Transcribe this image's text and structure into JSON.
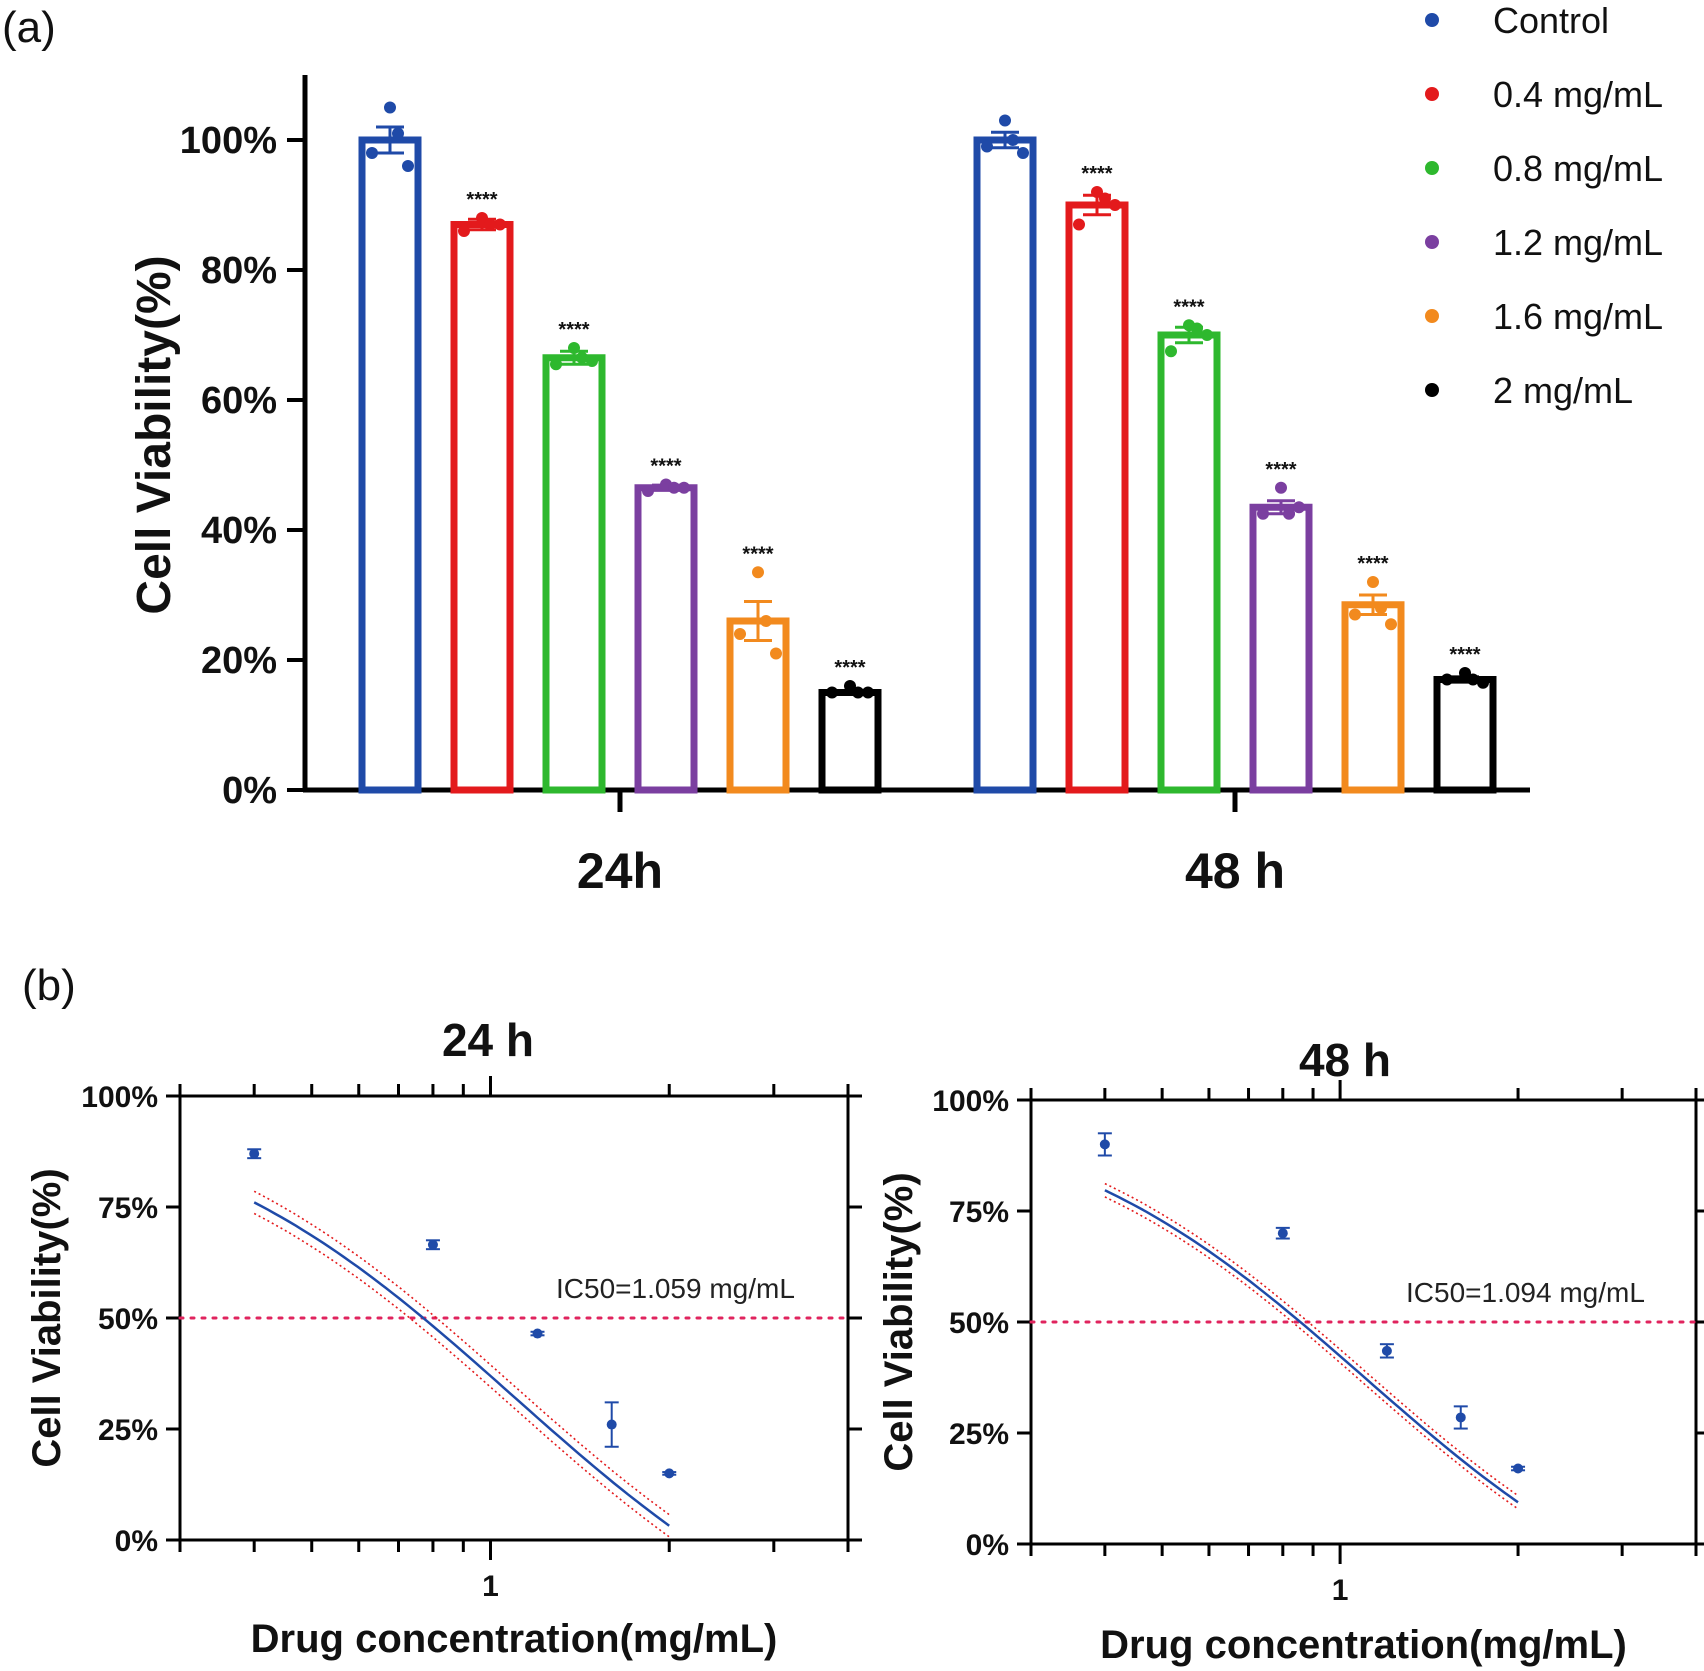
{
  "panels": {
    "a_label": "(a)",
    "b_label": "(b)"
  },
  "chart_data": [
    {
      "id": "a",
      "type": "bar",
      "title": "",
      "ylabel": "Cell Viability(%)",
      "xlabel": "",
      "ylim": [
        0,
        110
      ],
      "yticks": [
        "0%",
        "20%",
        "40%",
        "60%",
        "80%",
        "100%"
      ],
      "yticks_values": [
        0,
        20,
        40,
        60,
        80,
        100
      ],
      "categories": [
        "24h",
        "48 h"
      ],
      "significance_label": "****",
      "series": [
        {
          "name": "Control",
          "color": "#1f4aa8",
          "values": [
            100,
            100
          ],
          "sem": [
            2,
            1.2
          ],
          "points": [
            [
              105,
              98,
              96,
              101
            ],
            [
              103,
              99,
              98,
              100
            ]
          ],
          "sig": [
            false,
            false
          ]
        },
        {
          "name": "0.4 mg/mL",
          "color": "#e31a1c",
          "values": [
            87,
            90
          ],
          "sem": [
            0.8,
            1.5
          ],
          "points": [
            [
              88,
              86,
              87,
              87
            ],
            [
              92,
              87,
              90,
              91
            ]
          ],
          "sig": [
            true,
            true
          ]
        },
        {
          "name": "0.8 mg/mL",
          "color": "#2eb82e",
          "values": [
            66.5,
            70
          ],
          "sem": [
            1,
            1.2
          ],
          "points": [
            [
              68,
              65.5,
              66,
              66.5
            ],
            [
              71.5,
              67.5,
              70,
              71
            ]
          ],
          "sig": [
            true,
            true
          ]
        },
        {
          "name": "1.2 mg/mL",
          "color": "#7b3fa0",
          "values": [
            46.5,
            43.5
          ],
          "sem": [
            0.4,
            1
          ],
          "points": [
            [
              47,
              46,
              46.5,
              46.5
            ],
            [
              46.5,
              42.5,
              43.5,
              42.5
            ]
          ],
          "sig": [
            true,
            true
          ]
        },
        {
          "name": "1.6 mg/mL",
          "color": "#f28a1e",
          "values": [
            26,
            28.5
          ],
          "sem": [
            3,
            1.5
          ],
          "points": [
            [
              33.5,
              24,
              21,
              26
            ],
            [
              32,
              27,
              25.5,
              28
            ]
          ],
          "sig": [
            true,
            true
          ]
        },
        {
          "name": "2 mg/mL",
          "color": "#000000",
          "values": [
            15,
            17
          ],
          "sem": [
            0.3,
            0.4
          ],
          "points": [
            [
              16,
              15,
              15,
              15
            ],
            [
              18,
              17,
              16.5,
              17
            ]
          ],
          "sig": [
            true,
            true
          ]
        }
      ]
    },
    {
      "id": "b1",
      "type": "scatter",
      "title": "24 h",
      "xlabel": "Drug concentration(mg/mL)",
      "ylabel": "Cell Viability(%)",
      "xscale": "log",
      "xlim": [
        0.3,
        4
      ],
      "ylim": [
        0,
        100
      ],
      "yticks": [
        "0%",
        "25%",
        "50%",
        "75%",
        "100%"
      ],
      "yticks_values": [
        0,
        25,
        50,
        75,
        100
      ],
      "xtick_label": "1",
      "x": [
        0.4,
        0.8,
        1.2,
        1.6,
        2
      ],
      "y": [
        87,
        66.5,
        46.5,
        26,
        15
      ],
      "err": [
        1,
        1,
        0.4,
        5,
        0.3
      ],
      "fit_range": [
        0.4,
        2
      ],
      "fit_top": 100,
      "fit_bottom": -35,
      "fit_ec50": 1.09,
      "fit_hill": 1.53,
      "ci_band": 2.5,
      "reference_line": 50,
      "annotation": "IC50=1.059 mg/mL"
    },
    {
      "id": "b2",
      "type": "scatter",
      "title": "48 h",
      "xlabel": "Drug concentration(mg/mL)",
      "ylabel": "Cell Viability(%)",
      "xscale": "log",
      "xlim": [
        0.3,
        4
      ],
      "ylim": [
        0,
        100
      ],
      "yticks": [
        "0%",
        "25%",
        "50%",
        "75%",
        "100%"
      ],
      "yticks_values": [
        0,
        25,
        50,
        75,
        100
      ],
      "xtick_label": "1",
      "x": [
        0.4,
        0.8,
        1.2,
        1.6,
        2
      ],
      "y": [
        90,
        70,
        43.5,
        28.5,
        17
      ],
      "err": [
        2.5,
        1.2,
        1.5,
        2.5,
        0.4
      ],
      "fit_range": [
        0.4,
        2
      ],
      "fit_top": 100,
      "fit_bottom": -25,
      "fit_ec50": 1.1,
      "fit_hill": 1.62,
      "ci_band": 1.5,
      "reference_line": 50,
      "annotation": "IC50=1.094 mg/mL"
    }
  ]
}
